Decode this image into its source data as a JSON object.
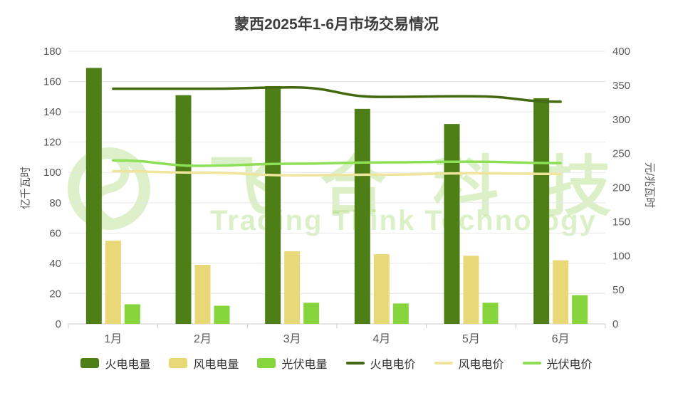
{
  "title": "蒙西2025年1-6月市场交易情况",
  "watermark": {
    "text_cn": "飞合科技",
    "text_en": "Trading Think Technology"
  },
  "chart_data": {
    "type": "combo-bar-line",
    "title": "蒙西2025年1-6月市场交易情况",
    "categories": [
      "1月",
      "2月",
      "3月",
      "4月",
      "5月",
      "6月"
    ],
    "left_axis": {
      "label": "亿千瓦时",
      "min": 0,
      "max": 180,
      "step": 20
    },
    "right_axis": {
      "label": "元/兆瓦时",
      "min": 0,
      "max": 400,
      "step": 50
    },
    "grid": true,
    "legend_position": "bottom",
    "bar_series": [
      {
        "name": "火电电量",
        "color": "#4e7e16",
        "axis": "left",
        "values": [
          169,
          151,
          157,
          142,
          132,
          149
        ]
      },
      {
        "name": "风电电量",
        "color": "#e8d878",
        "axis": "left",
        "values": [
          55,
          39,
          48,
          46,
          45,
          42
        ]
      },
      {
        "name": "光伏电量",
        "color": "#86d53c",
        "axis": "left",
        "values": [
          13,
          12,
          14,
          13.5,
          14,
          19
        ]
      }
    ],
    "line_series": [
      {
        "name": "火电电价",
        "color": "#42690f",
        "axis": "right",
        "values": [
          345,
          345,
          347,
          333,
          334,
          326
        ]
      },
      {
        "name": "风电电价",
        "color": "#efe59c",
        "axis": "right",
        "values": [
          224,
          222,
          218,
          219,
          221,
          220
        ]
      },
      {
        "name": "光伏电价",
        "color": "#8ddf55",
        "axis": "right",
        "values": [
          240,
          232,
          235,
          237,
          238,
          236
        ]
      }
    ]
  }
}
